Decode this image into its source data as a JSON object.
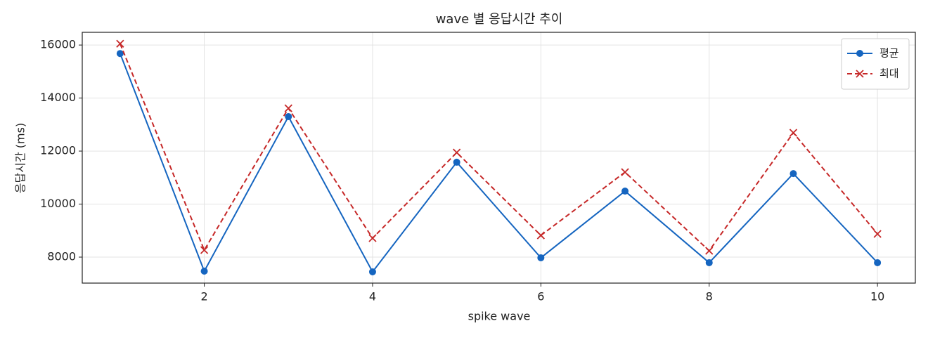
{
  "chart_data": {
    "type": "line",
    "title": "wave 별 응답시간 추이",
    "xlabel": "spike wave",
    "ylabel": "응답시간 (ms)",
    "x": [
      1,
      2,
      3,
      4,
      5,
      6,
      7,
      8,
      9,
      10
    ],
    "series": [
      {
        "name": "평균",
        "color": "#1565c0",
        "marker": "circle",
        "linestyle": "solid",
        "values": [
          15680,
          7470,
          13300,
          7445,
          11580,
          7975,
          10490,
          7790,
          11150,
          7790
        ]
      },
      {
        "name": "최대",
        "color": "#c62828",
        "marker": "x",
        "linestyle": "dashed",
        "values": [
          16050,
          8265,
          13615,
          8715,
          11945,
          8820,
          11205,
          8240,
          12690,
          8875
        ]
      }
    ],
    "xlim": [
      0.55,
      10.45
    ],
    "ylim": [
      7020,
      16480
    ],
    "xticks": [
      2,
      4,
      6,
      8,
      10
    ],
    "yticks": [
      8000,
      10000,
      12000,
      14000,
      16000
    ],
    "grid": true,
    "legend": "upper right"
  }
}
